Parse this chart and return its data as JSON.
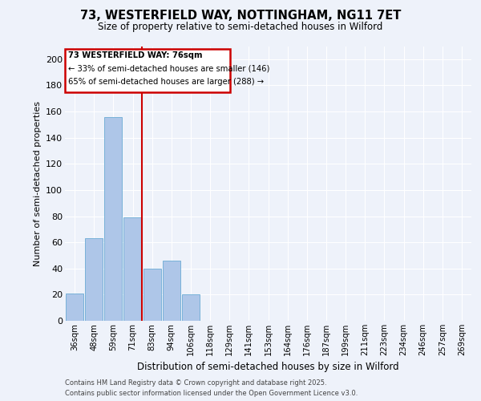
{
  "title_line1": "73, WESTERFIELD WAY, NOTTINGHAM, NG11 7ET",
  "title_line2": "Size of property relative to semi-detached houses in Wilford",
  "xlabel": "Distribution of semi-detached houses by size in Wilford",
  "ylabel": "Number of semi-detached properties",
  "categories": [
    "36sqm",
    "48sqm",
    "59sqm",
    "71sqm",
    "83sqm",
    "94sqm",
    "106sqm",
    "118sqm",
    "129sqm",
    "141sqm",
    "153sqm",
    "164sqm",
    "176sqm",
    "187sqm",
    "199sqm",
    "211sqm",
    "223sqm",
    "234sqm",
    "246sqm",
    "257sqm",
    "269sqm"
  ],
  "values": [
    21,
    63,
    156,
    79,
    40,
    46,
    20,
    0,
    0,
    0,
    0,
    0,
    0,
    0,
    0,
    0,
    0,
    0,
    0,
    0,
    0
  ],
  "bar_color": "#aec6e8",
  "bar_edge_color": "#6aaad4",
  "annotation_text1": "73 WESTERFIELD WAY: 76sqm",
  "annotation_text2": "← 33% of semi-detached houses are smaller (146)",
  "annotation_text3": "65% of semi-detached houses are larger (288) →",
  "box_color": "#cc0000",
  "vline_color": "#cc0000",
  "ylim": [
    0,
    210
  ],
  "yticks": [
    0,
    20,
    40,
    60,
    80,
    100,
    120,
    140,
    160,
    180,
    200
  ],
  "background_color": "#eef2fa",
  "grid_color": "#ffffff",
  "footer_line1": "Contains HM Land Registry data © Crown copyright and database right 2025.",
  "footer_line2": "Contains public sector information licensed under the Open Government Licence v3.0."
}
